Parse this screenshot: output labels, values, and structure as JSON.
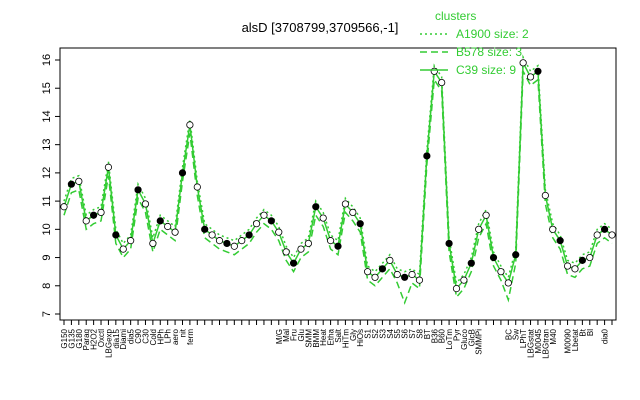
{
  "chart_data": {
    "type": "line",
    "title": "alsD [3708799,3709566,-1]",
    "legend_title": "clusters",
    "legend_position": "top-right",
    "categories": [
      "G150",
      "G135",
      "G180",
      "Paraq",
      "H2O2",
      "Oxctl",
      "LBGexp",
      "dia15",
      "Diami",
      "dia5",
      "C90",
      "C30",
      "Cold",
      "HPh",
      "LPh",
      "aero",
      "nit",
      "ferm",
      null,
      null,
      null,
      null,
      null,
      null,
      null,
      null,
      null,
      null,
      null,
      "M/G",
      "Mal",
      "Fru",
      "Glu",
      "SMM",
      "BMM",
      "Heat",
      "Etha",
      "Salt",
      "HiTm",
      "Gly",
      "HiOs",
      "S1",
      "S2",
      "S3",
      "S4",
      "S5",
      "S6",
      "S7",
      "S8",
      "BT",
      "B36",
      "B60",
      "LoTm",
      "Pyr",
      "Gluco",
      "GlcB",
      "SMMPi",
      null,
      null,
      null,
      "BC",
      "Sw",
      "LPhT",
      "LBGstat",
      "M0045",
      "LBGtran",
      "M40",
      null,
      "M0090",
      "Lbetat",
      "Bt",
      "Bl",
      null,
      "dia0",
      null
    ],
    "series": [
      {
        "name": "A1900 size: 2",
        "color": "#33cc33",
        "dash": "2,3",
        "values": [
          11.0,
          11.8,
          11.9,
          10.5,
          10.7,
          10.8,
          12.4,
          10.0,
          9.5,
          9.8,
          11.6,
          11.1,
          9.7,
          10.5,
          10.3,
          10.1,
          12.2,
          13.9,
          11.7,
          10.2,
          10.0,
          9.8,
          9.7,
          9.6,
          9.8,
          10.0,
          10.4,
          10.7,
          10.5,
          10.1,
          9.4,
          9.0,
          9.5,
          9.7,
          11.0,
          10.6,
          9.8,
          9.6,
          11.1,
          10.8,
          10.4,
          8.7,
          8.5,
          8.8,
          9.1,
          8.6,
          8.5,
          8.6,
          8.4,
          12.8,
          15.8,
          15.4,
          9.7,
          8.1,
          8.4,
          9.0,
          10.2,
          10.7,
          9.2,
          8.7,
          8.3,
          9.3,
          16.1,
          15.6,
          15.8,
          11.4,
          10.2,
          9.8,
          8.9,
          8.8,
          9.1,
          9.2,
          10.0,
          10.2,
          10.0
        ]
      },
      {
        "name": "B578 size: 3",
        "color": "#33cc33",
        "dash": "7,4",
        "values": [
          10.5,
          11.3,
          11.4,
          10.0,
          10.2,
          10.3,
          11.9,
          9.5,
          9.0,
          9.3,
          11.1,
          10.6,
          9.2,
          10.0,
          9.8,
          9.6,
          11.7,
          13.4,
          11.2,
          9.7,
          9.5,
          9.3,
          9.2,
          9.1,
          9.3,
          9.5,
          9.9,
          10.2,
          10.0,
          9.6,
          8.9,
          8.5,
          9.0,
          9.2,
          10.5,
          10.1,
          9.3,
          9.1,
          10.6,
          10.3,
          9.9,
          8.2,
          8.0,
          8.3,
          8.6,
          8.1,
          7.4,
          8.1,
          7.9,
          12.3,
          15.3,
          14.9,
          9.2,
          7.6,
          7.9,
          8.5,
          9.7,
          10.2,
          8.7,
          8.2,
          7.5,
          8.8,
          15.6,
          15.1,
          15.3,
          10.9,
          9.7,
          9.3,
          8.4,
          8.3,
          8.6,
          8.7,
          9.5,
          9.7,
          9.5
        ]
      },
      {
        "name": "C39 size: 9",
        "color": "#33cc33",
        "dash": "",
        "values": [
          10.8,
          11.6,
          11.7,
          10.3,
          10.5,
          10.6,
          12.2,
          9.8,
          9.3,
          9.6,
          11.4,
          10.9,
          9.5,
          10.3,
          10.1,
          9.9,
          12.0,
          13.7,
          11.5,
          10.0,
          9.8,
          9.6,
          9.5,
          9.4,
          9.6,
          9.8,
          10.2,
          10.5,
          10.3,
          9.9,
          9.2,
          8.8,
          9.3,
          9.5,
          10.8,
          10.4,
          9.6,
          9.4,
          10.9,
          10.6,
          10.2,
          8.5,
          8.3,
          8.6,
          8.9,
          8.4,
          8.3,
          8.4,
          8.2,
          12.6,
          15.6,
          15.2,
          9.5,
          7.9,
          8.2,
          8.8,
          10.0,
          10.5,
          9.0,
          8.5,
          8.1,
          9.1,
          15.9,
          15.4,
          15.6,
          11.2,
          10.0,
          9.6,
          8.7,
          8.6,
          8.9,
          9.0,
          9.8,
          10.0,
          9.8
        ]
      }
    ],
    "ylim": [
      7,
      16
    ],
    "yticks": [
      7,
      8,
      9,
      10,
      11,
      12,
      13,
      14,
      15,
      16
    ]
  }
}
